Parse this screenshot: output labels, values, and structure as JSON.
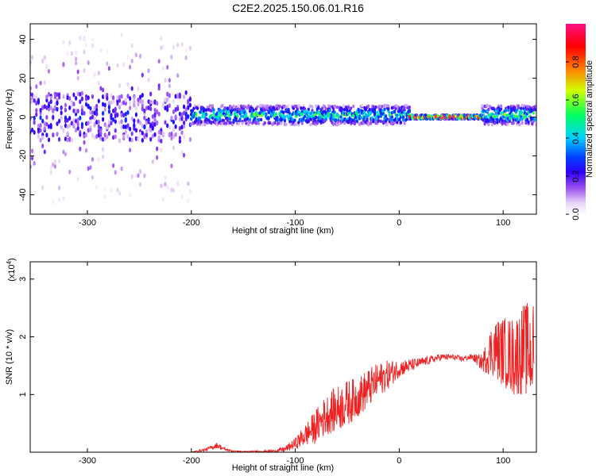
{
  "title": "C2E2.2025.150.06.01.R16",
  "chart_data": [
    {
      "type": "heatmap",
      "xlabel": "Height of straight line (km)",
      "ylabel": "Frequency (Hz)",
      "xlim": [
        -355,
        132
      ],
      "ylim": [
        -50,
        48
      ],
      "xticks": [
        -300,
        -200,
        -100,
        0,
        100
      ],
      "yticks": [
        -40,
        -20,
        0,
        20,
        40
      ],
      "colorbar": {
        "label": "Normalized spectral amplitude",
        "range": [
          0,
          1
        ],
        "ticks": [
          "0.0",
          "0.2",
          "0.4",
          "0.6",
          "0.8"
        ],
        "colors": [
          "#ffffff",
          "#e8d6f7",
          "#c79cf0",
          "#8a2be2",
          "#4b00e6",
          "#1e1eff",
          "#00c8ff",
          "#00ff80",
          "#ffff00",
          "#ff8000",
          "#ff0000",
          "#ff007f"
        ]
      },
      "segments": [
        {
          "x_range": [
            -355,
            -200
          ],
          "freq_center": 0,
          "freq_spread": 48,
          "level": 0.15,
          "description": "noisy broadband"
        },
        {
          "x_range": [
            -200,
            10
          ],
          "freq_center": 1,
          "freq_spread": 5,
          "level": 0.45
        },
        {
          "x_range": [
            10,
            80
          ],
          "freq_center": 0,
          "freq_spread": 1,
          "level": 0.95
        },
        {
          "x_range": [
            80,
            132
          ],
          "freq_center": 1,
          "freq_spread": 5,
          "level": 0.5
        }
      ]
    },
    {
      "type": "line",
      "xlabel": "Height of straight line (km)",
      "ylabel": "SNR (10 * v/v)",
      "yscale_label": "(x10",
      "yscale_exp": "4",
      "xlim": [
        -355,
        132
      ],
      "ylim": [
        0,
        3.3
      ],
      "xticks": [
        -300,
        -200,
        -100,
        0,
        100
      ],
      "yticks": [
        1,
        2,
        3
      ],
      "series": [
        {
          "color": "#ee2222",
          "x": [
            -355,
            -250,
            -200,
            -185,
            -175,
            -168,
            -160,
            -150,
            -120,
            -110,
            -100,
            -90,
            -80,
            -70,
            -60,
            -50,
            -40,
            -30,
            -20,
            -10,
            0,
            10,
            20,
            30,
            40,
            50,
            60,
            70,
            80,
            90,
            100,
            110,
            120,
            130
          ],
          "y": [
            0.0,
            0.0,
            0.0,
            0.05,
            0.12,
            0.05,
            0.02,
            0.01,
            0.02,
            0.05,
            0.15,
            0.3,
            0.45,
            0.65,
            0.75,
            0.85,
            0.95,
            1.1,
            1.25,
            1.35,
            1.45,
            1.5,
            1.55,
            1.6,
            1.65,
            1.65,
            1.62,
            1.65,
            1.55,
            1.8,
            1.75,
            1.65,
            1.8,
            1.7
          ],
          "noise": [
            0,
            0,
            0,
            0.03,
            0.05,
            0.03,
            0.01,
            0.01,
            0.02,
            0.05,
            0.1,
            0.2,
            0.3,
            0.35,
            0.4,
            0.4,
            0.35,
            0.35,
            0.3,
            0.25,
            0.15,
            0.12,
            0.08,
            0.07,
            0.06,
            0.05,
            0.05,
            0.05,
            0.15,
            0.5,
            0.6,
            0.7,
            0.8,
            0.9
          ]
        }
      ]
    }
  ]
}
